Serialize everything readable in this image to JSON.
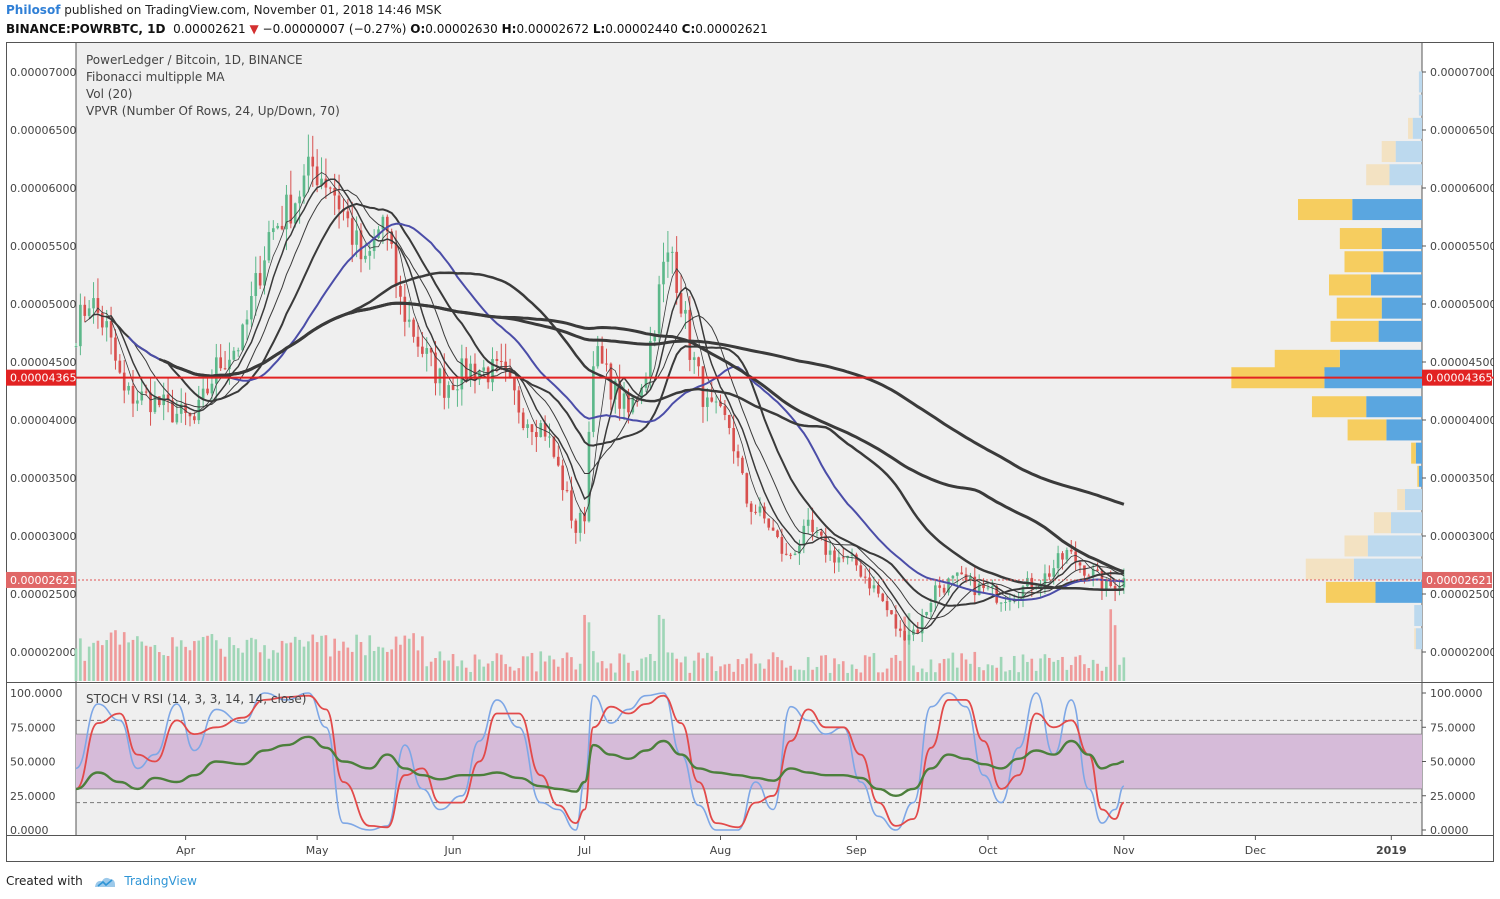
{
  "header": {
    "author": "Philosof",
    "published_text": "published on TradingView.com, November 01, 2018 14:46 MSK",
    "symbol": "BINANCE:POWRBTC, 1D",
    "last_price": "0.00002621",
    "change": "−0.00000007 (−0.27%)",
    "ohlc": {
      "o_label": "O:",
      "o": "0.00002630",
      "h_label": "H:",
      "h": "0.00002672",
      "l_label": "L:",
      "l": "0.00002440",
      "c_label": "C:",
      "c": "0.00002621"
    }
  },
  "legend": [
    "PowerLedger / Bitcoin, 1D, BINANCE",
    "Fibonacci multipple MA",
    "Vol (20)",
    "VPVR (Number Of Rows, 24, Up/Down, 70)"
  ],
  "stoch_label": "STOCH V RSI (14, 3, 3, 14, 14, close)",
  "footer": {
    "created_with": "Created with",
    "brand": "TradingView"
  },
  "colors": {
    "up": "#5cb88a",
    "down": "#d8504e",
    "vol_up": "#9fd6b7",
    "vol_down": "#ef9a9a",
    "ma": "#3a3a3a",
    "ma_blue": "#4b4da8",
    "poc_line": "#e22222",
    "vp_up": "#5aa6e0",
    "vp_down": "#f6cd5f",
    "vp_up_light": "#bcd9ee",
    "vp_down_light": "#f3e2c2",
    "rsi_band": "#d6bbd9",
    "stoch_k": "#7ea7e6",
    "stoch_d": "#e24a4a",
    "stoch_rsi": "#4c7f3c"
  },
  "chart_data": {
    "type": "candlestick",
    "price_axis": {
      "min": 1.75e-05,
      "max": 7.25e-05,
      "ticks": [
        "0.00007000",
        "0.00006500",
        "0.00006000",
        "0.00005500",
        "0.00005000",
        "0.00004500",
        "0.00004000",
        "0.00003500",
        "0.00003000",
        "0.00002500",
        "0.00002000"
      ],
      "tick_values": [
        7e-05,
        6.5e-05,
        6e-05,
        5.5e-05,
        5e-05,
        4.5e-05,
        4e-05,
        3.5e-05,
        3e-05,
        2.5e-05,
        2e-05
      ]
    },
    "time_axis": {
      "start": "2018-03-07",
      "end": "2019-01-08",
      "labels": [
        {
          "text": "Apr",
          "date": "2018-04-01"
        },
        {
          "text": "May",
          "date": "2018-05-01"
        },
        {
          "text": "Jun",
          "date": "2018-06-01"
        },
        {
          "text": "Jul",
          "date": "2018-07-01"
        },
        {
          "text": "Aug",
          "date": "2018-08-01"
        },
        {
          "text": "Sep",
          "date": "2018-09-01"
        },
        {
          "text": "Oct",
          "date": "2018-10-01"
        },
        {
          "text": "Nov",
          "date": "2018-11-01"
        },
        {
          "text": "Dec",
          "date": "2018-12-01"
        },
        {
          "text": "2019",
          "date": "2019-01-01"
        }
      ]
    },
    "price_path": [
      [
        "2018-03-07",
        4.78e-05
      ],
      [
        "2018-03-10",
        5.05e-05
      ],
      [
        "2018-03-14",
        4.78e-05
      ],
      [
        "2018-03-18",
        4.22e-05
      ],
      [
        "2018-03-24",
        4.18e-05
      ],
      [
        "2018-03-30",
        4.05e-05
      ],
      [
        "2018-04-03",
        3.98e-05
      ],
      [
        "2018-04-08",
        4.45e-05
      ],
      [
        "2018-04-14",
        4.7e-05
      ],
      [
        "2018-04-20",
        5.6e-05
      ],
      [
        "2018-04-25",
        5.85e-05
      ],
      [
        "2018-04-30",
        6.18e-05
      ],
      [
        "2018-05-04",
        6.05e-05
      ],
      [
        "2018-05-08",
        5.7e-05
      ],
      [
        "2018-05-12",
        5.3e-05
      ],
      [
        "2018-05-16",
        5.75e-05
      ],
      [
        "2018-05-20",
        5e-05
      ],
      [
        "2018-05-25",
        4.6e-05
      ],
      [
        "2018-05-30",
        4.3e-05
      ],
      [
        "2018-06-05",
        4.45e-05
      ],
      [
        "2018-06-12",
        4.4e-05
      ],
      [
        "2018-06-17",
        4.05e-05
      ],
      [
        "2018-06-22",
        3.92e-05
      ],
      [
        "2018-06-26",
        3.45e-05
      ],
      [
        "2018-06-29",
        3.05e-05
      ],
      [
        "2018-07-01",
        3.2e-05
      ],
      [
        "2018-07-03",
        4.6e-05
      ],
      [
        "2018-07-07",
        4.3e-05
      ],
      [
        "2018-07-11",
        4.05e-05
      ],
      [
        "2018-07-15",
        4.45e-05
      ],
      [
        "2018-07-19",
        5.3e-05
      ],
      [
        "2018-07-21",
        5.45e-05
      ],
      [
        "2018-07-25",
        4.62e-05
      ],
      [
        "2018-07-29",
        4.1e-05
      ],
      [
        "2018-08-03",
        3.95e-05
      ],
      [
        "2018-08-07",
        3.3e-05
      ],
      [
        "2018-08-12",
        3.1e-05
      ],
      [
        "2018-08-16",
        2.8e-05
      ],
      [
        "2018-08-21",
        3.05e-05
      ],
      [
        "2018-08-26",
        2.85e-05
      ],
      [
        "2018-09-01",
        2.75e-05
      ],
      [
        "2018-09-06",
        2.5e-05
      ],
      [
        "2018-09-11",
        2.15e-05
      ],
      [
        "2018-09-15",
        2.2e-05
      ],
      [
        "2018-09-19",
        2.55e-05
      ],
      [
        "2018-09-24",
        2.62e-05
      ],
      [
        "2018-09-29",
        2.55e-05
      ],
      [
        "2018-10-04",
        2.48e-05
      ],
      [
        "2018-10-09",
        2.55e-05
      ],
      [
        "2018-10-14",
        2.65e-05
      ],
      [
        "2018-10-19",
        2.85e-05
      ],
      [
        "2018-10-24",
        2.7e-05
      ],
      [
        "2018-10-28",
        2.55e-05
      ],
      [
        "2018-11-01",
        2.62e-05
      ]
    ],
    "current_price": {
      "value": 2.621e-05,
      "label": "0.00002621"
    },
    "poc_level": {
      "value": 4.365e-05,
      "label": "0.00004365"
    },
    "volume_profile": [
      {
        "price": 6.91e-05,
        "up": 2,
        "down": 0
      },
      {
        "price": 6.71e-05,
        "up": 2,
        "down": 0
      },
      {
        "price": 6.51e-05,
        "up": 6,
        "down": 3
      },
      {
        "price": 6.31e-05,
        "up": 17,
        "down": 9
      },
      {
        "price": 6.11e-05,
        "up": 21,
        "down": 15
      },
      {
        "price": 5.81e-05,
        "up": 45,
        "down": 35
      },
      {
        "price": 5.56e-05,
        "up": 26,
        "down": 27
      },
      {
        "price": 5.36e-05,
        "up": 25,
        "down": 25
      },
      {
        "price": 5.16e-05,
        "up": 33,
        "down": 27
      },
      {
        "price": 4.96e-05,
        "up": 26,
        "down": 29
      },
      {
        "price": 4.76e-05,
        "up": 28,
        "down": 31
      },
      {
        "price": 4.51e-05,
        "up": 53,
        "down": 42
      },
      {
        "price": 4.36e-05,
        "up": 63,
        "down": 60
      },
      {
        "price": 4.11e-05,
        "up": 36,
        "down": 35
      },
      {
        "price": 3.91e-05,
        "up": 23,
        "down": 25
      },
      {
        "price": 3.71e-05,
        "up": 4,
        "down": 3
      },
      {
        "price": 3.51e-05,
        "up": 2,
        "down": 1
      },
      {
        "price": 3.31e-05,
        "up": 11,
        "down": 5
      },
      {
        "price": 3.11e-05,
        "up": 20,
        "down": 11
      },
      {
        "price": 2.91e-05,
        "up": 35,
        "down": 15
      },
      {
        "price": 2.71e-05,
        "up": 44,
        "down": 31
      },
      {
        "price": 2.51e-05,
        "up": 30,
        "down": 32
      },
      {
        "price": 2.31e-05,
        "up": 5,
        "down": 0
      },
      {
        "price": 2.11e-05,
        "up": 4,
        "down": 1
      }
    ],
    "stoch": {
      "ticks": [
        "100.0000",
        "75.0000",
        "50.0000",
        "25.0000",
        "0.0000"
      ],
      "tick_values": [
        100,
        75,
        50,
        25,
        0
      ],
      "band": [
        30,
        70
      ],
      "dashed": [
        80,
        20
      ],
      "k": [
        [
          "2018-03-07",
          45
        ],
        [
          "2018-03-12",
          92
        ],
        [
          "2018-03-17",
          80
        ],
        [
          "2018-03-21",
          45
        ],
        [
          "2018-03-25",
          55
        ],
        [
          "2018-03-30",
          92
        ],
        [
          "2018-04-03",
          58
        ],
        [
          "2018-04-08",
          88
        ],
        [
          "2018-04-14",
          78
        ],
        [
          "2018-04-19",
          100
        ],
        [
          "2018-04-24",
          95
        ],
        [
          "2018-04-29",
          100
        ],
        [
          "2018-05-03",
          75
        ],
        [
          "2018-05-07",
          5
        ],
        [
          "2018-05-13",
          0
        ],
        [
          "2018-05-17",
          3
        ],
        [
          "2018-05-21",
          62
        ],
        [
          "2018-05-25",
          30
        ],
        [
          "2018-05-29",
          15
        ],
        [
          "2018-06-03",
          25
        ],
        [
          "2018-06-07",
          65
        ],
        [
          "2018-06-11",
          95
        ],
        [
          "2018-06-16",
          75
        ],
        [
          "2018-06-21",
          20
        ],
        [
          "2018-06-25",
          15
        ],
        [
          "2018-06-29",
          0
        ],
        [
          "2018-07-01",
          35
        ],
        [
          "2018-07-03",
          98
        ],
        [
          "2018-07-07",
          78
        ],
        [
          "2018-07-11",
          88
        ],
        [
          "2018-07-15",
          98
        ],
        [
          "2018-07-19",
          100
        ],
        [
          "2018-07-23",
          55
        ],
        [
          "2018-07-27",
          18
        ],
        [
          "2018-07-31",
          0
        ],
        [
          "2018-08-05",
          0
        ],
        [
          "2018-08-09",
          35
        ],
        [
          "2018-08-13",
          15
        ],
        [
          "2018-08-17",
          90
        ],
        [
          "2018-08-21",
          80
        ],
        [
          "2018-08-25",
          70
        ],
        [
          "2018-08-29",
          75
        ],
        [
          "2018-09-02",
          35
        ],
        [
          "2018-09-06",
          10
        ],
        [
          "2018-09-10",
          0
        ],
        [
          "2018-09-14",
          20
        ],
        [
          "2018-09-18",
          90
        ],
        [
          "2018-09-22",
          100
        ],
        [
          "2018-09-26",
          90
        ],
        [
          "2018-09-30",
          40
        ],
        [
          "2018-10-04",
          20
        ],
        [
          "2018-10-08",
          60
        ],
        [
          "2018-10-12",
          100
        ],
        [
          "2018-10-16",
          55
        ],
        [
          "2018-10-20",
          95
        ],
        [
          "2018-10-24",
          30
        ],
        [
          "2018-10-27",
          5
        ],
        [
          "2018-10-30",
          15
        ],
        [
          "2018-11-01",
          32
        ]
      ],
      "d": [
        [
          "2018-03-07",
          30
        ],
        [
          "2018-03-12",
          78
        ],
        [
          "2018-03-17",
          85
        ],
        [
          "2018-03-21",
          55
        ],
        [
          "2018-03-25",
          50
        ],
        [
          "2018-03-30",
          80
        ],
        [
          "2018-04-03",
          70
        ],
        [
          "2018-04-08",
          75
        ],
        [
          "2018-04-14",
          82
        ],
        [
          "2018-04-19",
          95
        ],
        [
          "2018-04-24",
          97
        ],
        [
          "2018-04-29",
          98
        ],
        [
          "2018-05-03",
          88
        ],
        [
          "2018-05-07",
          35
        ],
        [
          "2018-05-13",
          3
        ],
        [
          "2018-05-17",
          2
        ],
        [
          "2018-05-21",
          40
        ],
        [
          "2018-05-25",
          45
        ],
        [
          "2018-05-29",
          20
        ],
        [
          "2018-06-03",
          20
        ],
        [
          "2018-06-07",
          50
        ],
        [
          "2018-06-11",
          85
        ],
        [
          "2018-06-16",
          85
        ],
        [
          "2018-06-21",
          40
        ],
        [
          "2018-06-25",
          18
        ],
        [
          "2018-06-29",
          5
        ],
        [
          "2018-07-01",
          15
        ],
        [
          "2018-07-03",
          75
        ],
        [
          "2018-07-07",
          90
        ],
        [
          "2018-07-11",
          85
        ],
        [
          "2018-07-15",
          92
        ],
        [
          "2018-07-19",
          98
        ],
        [
          "2018-07-23",
          78
        ],
        [
          "2018-07-27",
          35
        ],
        [
          "2018-07-31",
          5
        ],
        [
          "2018-08-05",
          2
        ],
        [
          "2018-08-09",
          20
        ],
        [
          "2018-08-13",
          25
        ],
        [
          "2018-08-17",
          65
        ],
        [
          "2018-08-21",
          88
        ],
        [
          "2018-08-25",
          75
        ],
        [
          "2018-08-29",
          75
        ],
        [
          "2018-09-02",
          55
        ],
        [
          "2018-09-06",
          20
        ],
        [
          "2018-09-10",
          3
        ],
        [
          "2018-09-14",
          8
        ],
        [
          "2018-09-18",
          60
        ],
        [
          "2018-09-22",
          95
        ],
        [
          "2018-09-26",
          95
        ],
        [
          "2018-09-30",
          65
        ],
        [
          "2018-10-04",
          30
        ],
        [
          "2018-10-08",
          40
        ],
        [
          "2018-10-12",
          85
        ],
        [
          "2018-10-16",
          75
        ],
        [
          "2018-10-20",
          80
        ],
        [
          "2018-10-24",
          55
        ],
        [
          "2018-10-27",
          15
        ],
        [
          "2018-10-30",
          8
        ],
        [
          "2018-11-01",
          20
        ]
      ],
      "rsi": [
        [
          "2018-03-07",
          30
        ],
        [
          "2018-03-12",
          42
        ],
        [
          "2018-03-17",
          35
        ],
        [
          "2018-03-21",
          30
        ],
        [
          "2018-03-25",
          38
        ],
        [
          "2018-03-30",
          35
        ],
        [
          "2018-04-03",
          40
        ],
        [
          "2018-04-08",
          50
        ],
        [
          "2018-04-14",
          48
        ],
        [
          "2018-04-19",
          58
        ],
        [
          "2018-04-24",
          62
        ],
        [
          "2018-04-29",
          68
        ],
        [
          "2018-05-03",
          60
        ],
        [
          "2018-05-07",
          50
        ],
        [
          "2018-05-13",
          45
        ],
        [
          "2018-05-17",
          55
        ],
        [
          "2018-05-21",
          45
        ],
        [
          "2018-05-25",
          40
        ],
        [
          "2018-05-29",
          37
        ],
        [
          "2018-06-03",
          40
        ],
        [
          "2018-06-07",
          40
        ],
        [
          "2018-06-11",
          42
        ],
        [
          "2018-06-16",
          38
        ],
        [
          "2018-06-21",
          32
        ],
        [
          "2018-06-25",
          30
        ],
        [
          "2018-06-29",
          28
        ],
        [
          "2018-07-01",
          35
        ],
        [
          "2018-07-03",
          62
        ],
        [
          "2018-07-07",
          55
        ],
        [
          "2018-07-11",
          52
        ],
        [
          "2018-07-15",
          58
        ],
        [
          "2018-07-19",
          65
        ],
        [
          "2018-07-23",
          55
        ],
        [
          "2018-07-27",
          45
        ],
        [
          "2018-07-31",
          42
        ],
        [
          "2018-08-05",
          40
        ],
        [
          "2018-08-09",
          38
        ],
        [
          "2018-08-13",
          36
        ],
        [
          "2018-08-17",
          45
        ],
        [
          "2018-08-21",
          42
        ],
        [
          "2018-08-25",
          40
        ],
        [
          "2018-08-29",
          40
        ],
        [
          "2018-09-02",
          38
        ],
        [
          "2018-09-06",
          30
        ],
        [
          "2018-09-10",
          25
        ],
        [
          "2018-09-14",
          30
        ],
        [
          "2018-09-18",
          45
        ],
        [
          "2018-09-22",
          55
        ],
        [
          "2018-09-26",
          52
        ],
        [
          "2018-09-30",
          48
        ],
        [
          "2018-10-04",
          45
        ],
        [
          "2018-10-08",
          52
        ],
        [
          "2018-10-12",
          58
        ],
        [
          "2018-10-16",
          55
        ],
        [
          "2018-10-20",
          65
        ],
        [
          "2018-10-24",
          55
        ],
        [
          "2018-10-27",
          45
        ],
        [
          "2018-10-30",
          48
        ],
        [
          "2018-11-01",
          50
        ]
      ]
    }
  }
}
